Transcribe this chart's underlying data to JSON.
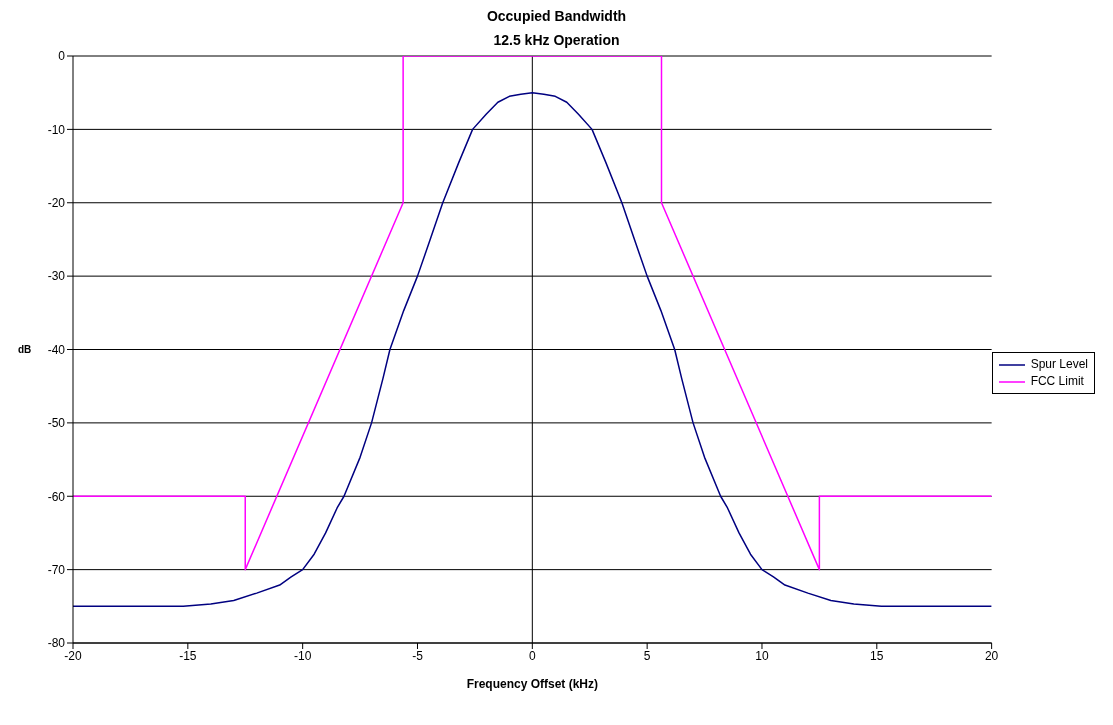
{
  "chart_data": {
    "type": "line",
    "title": "Occupied Bandwidth",
    "subtitle": "12.5 kHz Operation",
    "xlabel": "Frequency Offset (kHz)",
    "ylabel": "dB",
    "xlim": [
      -20,
      20
    ],
    "xticks": [
      -20,
      -15,
      -10,
      -5,
      0,
      5,
      10,
      15,
      20
    ],
    "ylim": [
      -80,
      0
    ],
    "yticks": [
      -80,
      -70,
      -60,
      -50,
      -40,
      -30,
      -20,
      -10,
      0
    ],
    "grid": "y",
    "legend": "right",
    "ref_lines": [
      {
        "axis": "x",
        "value": 0,
        "color": "#000000"
      }
    ],
    "marker": "none",
    "line_style": "solid",
    "series": [
      {
        "name": "Spur Level",
        "color": "#000080",
        "x": [
          -20,
          -18.5,
          -15.2,
          -14,
          -13,
          -12,
          -11,
          -10.5,
          -10,
          -9.5,
          -9,
          -8.5,
          -8.2,
          -7.5,
          -7,
          -6.5,
          -6.2,
          -5.6,
          -5,
          -4.5,
          -3.9,
          -3.2,
          -2.6,
          -2,
          -1.5,
          -1,
          -0.5,
          0,
          0.5,
          1,
          1.5,
          2,
          2.6,
          3.2,
          3.9,
          4.5,
          5,
          5.6,
          6.2,
          6.5,
          7,
          7.5,
          8.2,
          8.5,
          9,
          9.5,
          10,
          10.5,
          11,
          12,
          13,
          14,
          15.2,
          18.5,
          20
        ],
        "values": [
          -75,
          -75,
          -75,
          -74.7,
          -74.2,
          -73.2,
          -72.1,
          -71,
          -70,
          -67.9,
          -65,
          -61.6,
          -60,
          -54.7,
          -50,
          -43.9,
          -40,
          -34.7,
          -30,
          -25.5,
          -20,
          -14.5,
          -10,
          -7.9,
          -6.3,
          -5.5,
          -5.2,
          -5,
          -5.2,
          -5.5,
          -6.3,
          -7.9,
          -10,
          -14.5,
          -20,
          -25.5,
          -30,
          -34.7,
          -40,
          -43.9,
          -50,
          -54.7,
          -60,
          -61.6,
          -65,
          -67.9,
          -70,
          -71,
          -72.1,
          -73.2,
          -74.2,
          -74.7,
          -75,
          -75,
          -75
        ]
      },
      {
        "name": "FCC Limit",
        "color": "#ff00ff",
        "x": [
          -20,
          -12.5,
          -12.5,
          -5.625,
          -5.625,
          5.625,
          5.625,
          12.5,
          12.5,
          20
        ],
        "values": [
          -60,
          -60,
          -70,
          -20,
          0,
          0,
          -20,
          -70,
          -60,
          -60
        ]
      }
    ]
  }
}
